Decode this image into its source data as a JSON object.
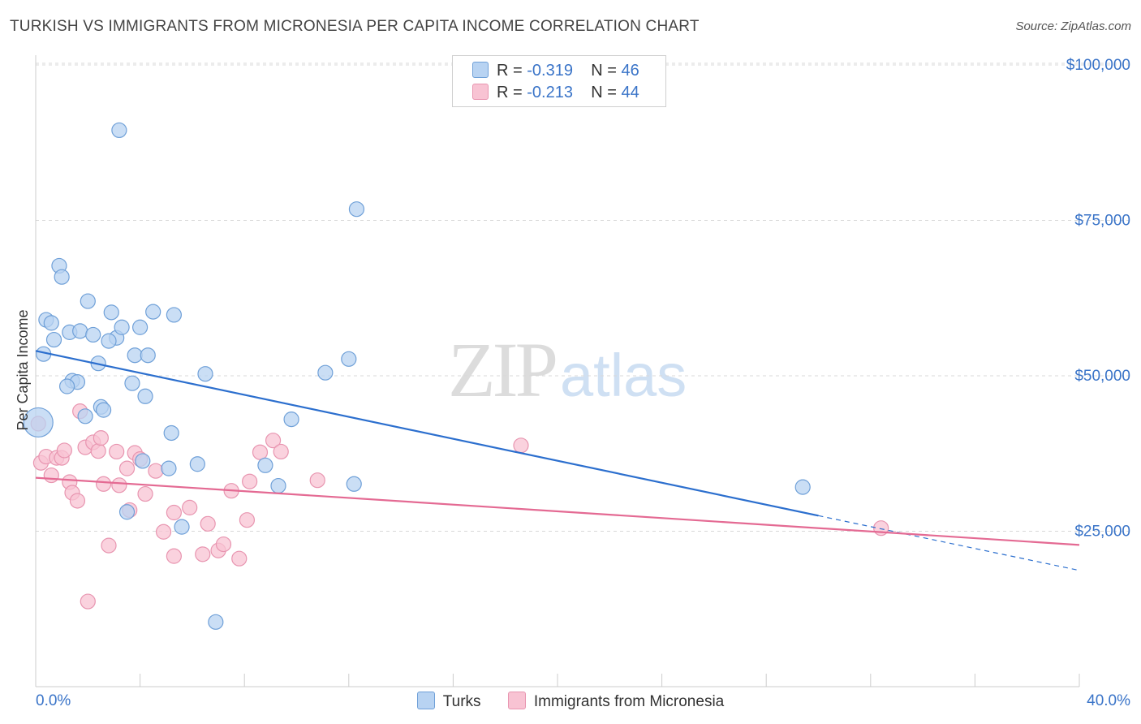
{
  "title": "TURKISH VS IMMIGRANTS FROM MICRONESIA PER CAPITA INCOME CORRELATION CHART",
  "source": "Source: ZipAtlas.com",
  "watermark": {
    "zip": "ZIP",
    "atlas": "atlas"
  },
  "legend": {
    "r_label": "R =",
    "n_label": "N =",
    "rows": [
      {
        "r": "-0.319",
        "n": "46"
      },
      {
        "r": "-0.213",
        "n": "44"
      }
    ]
  },
  "colors": {
    "turks_fill": "#b8d3f2",
    "turks_stroke": "#6fa0d8",
    "turks_line": "#2c6fce",
    "micro_fill": "#f8c3d3",
    "micro_stroke": "#e895b0",
    "micro_line": "#e46a93",
    "tick_label": "#3a74c8",
    "grid": "#d8d8d8"
  },
  "chart_data": {
    "type": "scatter",
    "title": "TURKISH VS IMMIGRANTS FROM MICRONESIA PER CAPITA INCOME CORRELATION CHART",
    "xlabel": "",
    "ylabel": "Per Capita Income",
    "xlim": [
      0,
      40
    ],
    "ylim": [
      0,
      104000
    ],
    "x_tick_labels": [
      "0.0%",
      "40.0%"
    ],
    "y_ticks": [
      25000,
      50000,
      75000,
      100000
    ],
    "y_tick_labels": [
      "$25,000",
      "$50,000",
      "$75,000",
      "$100,000"
    ],
    "grid": "horizontal dashed",
    "series": [
      {
        "name": "Turks",
        "r": -0.319,
        "n": 46,
        "trend": {
          "x0": 0,
          "y0": 54000,
          "x1": 30,
          "y1": 27500,
          "dash_to_x": 40,
          "dash_to_y": 18700
        },
        "points": [
          [
            3.2,
            89500
          ],
          [
            12.3,
            76800
          ],
          [
            0.9,
            67700
          ],
          [
            1.0,
            65900
          ],
          [
            2.0,
            62000
          ],
          [
            0.4,
            59000
          ],
          [
            0.6,
            58500
          ],
          [
            2.9,
            60200
          ],
          [
            4.5,
            60300
          ],
          [
            5.3,
            59800
          ],
          [
            1.3,
            57000
          ],
          [
            1.7,
            57200
          ],
          [
            2.2,
            56600
          ],
          [
            3.1,
            56100
          ],
          [
            3.3,
            57800
          ],
          [
            4.0,
            57800
          ],
          [
            0.7,
            55800
          ],
          [
            2.8,
            55600
          ],
          [
            0.3,
            53500
          ],
          [
            3.8,
            53300
          ],
          [
            4.3,
            53300
          ],
          [
            2.4,
            52000
          ],
          [
            12.0,
            52700
          ],
          [
            6.5,
            50300
          ],
          [
            11.1,
            50500
          ],
          [
            1.4,
            49200
          ],
          [
            1.6,
            49000
          ],
          [
            1.2,
            48300
          ],
          [
            3.7,
            48800
          ],
          [
            4.2,
            46700
          ],
          [
            2.5,
            45000
          ],
          [
            2.6,
            44500
          ],
          [
            1.9,
            43500
          ],
          [
            9.8,
            43000
          ],
          [
            0.1,
            42500
          ],
          [
            5.2,
            40800
          ],
          [
            4.1,
            36300
          ],
          [
            5.1,
            35100
          ],
          [
            6.2,
            35800
          ],
          [
            8.8,
            35600
          ],
          [
            9.3,
            32300
          ],
          [
            12.2,
            32600
          ],
          [
            29.4,
            32100
          ],
          [
            3.5,
            28100
          ],
          [
            5.6,
            25700
          ],
          [
            6.9,
            10400
          ]
        ]
      },
      {
        "name": "Immigrants from Micronesia",
        "r": -0.213,
        "n": 44,
        "trend": {
          "x0": 0,
          "y0": 33600,
          "x1": 40,
          "y1": 22800
        },
        "points": [
          [
            0.2,
            36000
          ],
          [
            0.4,
            37000
          ],
          [
            0.6,
            34000
          ],
          [
            0.8,
            36800
          ],
          [
            1.0,
            36800
          ],
          [
            1.1,
            38000
          ],
          [
            1.3,
            32900
          ],
          [
            1.4,
            31200
          ],
          [
            1.6,
            29900
          ],
          [
            1.7,
            44300
          ],
          [
            1.9,
            38500
          ],
          [
            2.2,
            39300
          ],
          [
            2.4,
            37900
          ],
          [
            2.5,
            40000
          ],
          [
            2.6,
            32600
          ],
          [
            2.8,
            22700
          ],
          [
            3.1,
            37800
          ],
          [
            3.2,
            32400
          ],
          [
            3.5,
            35100
          ],
          [
            3.6,
            28400
          ],
          [
            3.8,
            37600
          ],
          [
            4.0,
            36600
          ],
          [
            4.2,
            31000
          ],
          [
            4.6,
            34700
          ],
          [
            4.9,
            24900
          ],
          [
            5.3,
            28000
          ],
          [
            5.3,
            21000
          ],
          [
            5.9,
            28800
          ],
          [
            6.4,
            21300
          ],
          [
            6.6,
            26200
          ],
          [
            7.0,
            21900
          ],
          [
            7.2,
            22900
          ],
          [
            7.5,
            31500
          ],
          [
            7.8,
            20600
          ],
          [
            8.1,
            26800
          ],
          [
            8.2,
            33000
          ],
          [
            8.6,
            37700
          ],
          [
            9.1,
            39600
          ],
          [
            9.4,
            37800
          ],
          [
            10.8,
            33200
          ],
          [
            18.6,
            38800
          ],
          [
            32.4,
            25500
          ],
          [
            2.0,
            13700
          ],
          [
            0.1,
            42300
          ]
        ]
      }
    ]
  }
}
